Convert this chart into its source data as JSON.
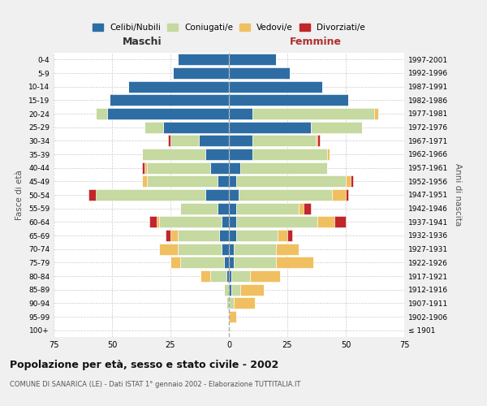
{
  "age_groups": [
    "100+",
    "95-99",
    "90-94",
    "85-89",
    "80-84",
    "75-79",
    "70-74",
    "65-69",
    "60-64",
    "55-59",
    "50-54",
    "45-49",
    "40-44",
    "35-39",
    "30-34",
    "25-29",
    "20-24",
    "15-19",
    "10-14",
    "5-9",
    "0-4"
  ],
  "birth_years": [
    "≤ 1901",
    "1902-1906",
    "1907-1911",
    "1912-1916",
    "1917-1921",
    "1922-1926",
    "1927-1931",
    "1932-1936",
    "1937-1941",
    "1942-1946",
    "1947-1951",
    "1952-1956",
    "1957-1961",
    "1962-1966",
    "1967-1971",
    "1972-1976",
    "1977-1981",
    "1982-1986",
    "1987-1991",
    "1992-1996",
    "1997-2001"
  ],
  "maschi": {
    "celibi": [
      0,
      0,
      0,
      0,
      1,
      2,
      3,
      4,
      3,
      5,
      10,
      5,
      8,
      10,
      13,
      28,
      52,
      51,
      43,
      24,
      22
    ],
    "coniugati": [
      0,
      0,
      1,
      2,
      7,
      19,
      19,
      18,
      27,
      16,
      47,
      30,
      27,
      27,
      12,
      8,
      5,
      0,
      0,
      0,
      0
    ],
    "vedovi": [
      0,
      0,
      0,
      0,
      4,
      4,
      8,
      3,
      1,
      0,
      0,
      2,
      1,
      0,
      0,
      0,
      0,
      0,
      0,
      0,
      0
    ],
    "divorziati": [
      0,
      0,
      0,
      0,
      0,
      0,
      0,
      2,
      3,
      0,
      3,
      0,
      1,
      0,
      1,
      0,
      0,
      0,
      0,
      0,
      0
    ]
  },
  "femmine": {
    "nubili": [
      0,
      0,
      0,
      1,
      1,
      2,
      2,
      3,
      3,
      3,
      4,
      3,
      5,
      10,
      10,
      35,
      10,
      51,
      40,
      26,
      20
    ],
    "coniugate": [
      0,
      0,
      2,
      4,
      8,
      18,
      18,
      18,
      35,
      27,
      40,
      47,
      37,
      32,
      27,
      22,
      52,
      0,
      0,
      0,
      0
    ],
    "vedove": [
      0,
      3,
      9,
      10,
      13,
      16,
      10,
      4,
      7,
      2,
      6,
      2,
      0,
      1,
      1,
      0,
      2,
      0,
      0,
      0,
      0
    ],
    "divorziate": [
      0,
      0,
      0,
      0,
      0,
      0,
      0,
      2,
      5,
      3,
      1,
      1,
      0,
      0,
      1,
      0,
      0,
      0,
      0,
      0,
      0
    ]
  },
  "colors": {
    "celibi": "#2e6da4",
    "coniugati": "#c5d9a0",
    "vedovi": "#f0c060",
    "divorziati": "#c0262a"
  },
  "title": "Popolazione per età, sesso e stato civile - 2002",
  "subtitle": "COMUNE DI SANARICA (LE) - Dati ISTAT 1° gennaio 2002 - Elaborazione TUTTITALIA.IT",
  "xlabel_maschi": "Maschi",
  "xlabel_femmine": "Femmine",
  "ylabel": "Fasce di età",
  "ylabel_right": "Anni di nascita",
  "xlim": 75,
  "bg_color": "#f0f0f0",
  "plot_bg": "#ffffff",
  "legend_labels": [
    "Celibi/Nubili",
    "Coniugati/e",
    "Vedovi/e",
    "Divorziati/e"
  ]
}
